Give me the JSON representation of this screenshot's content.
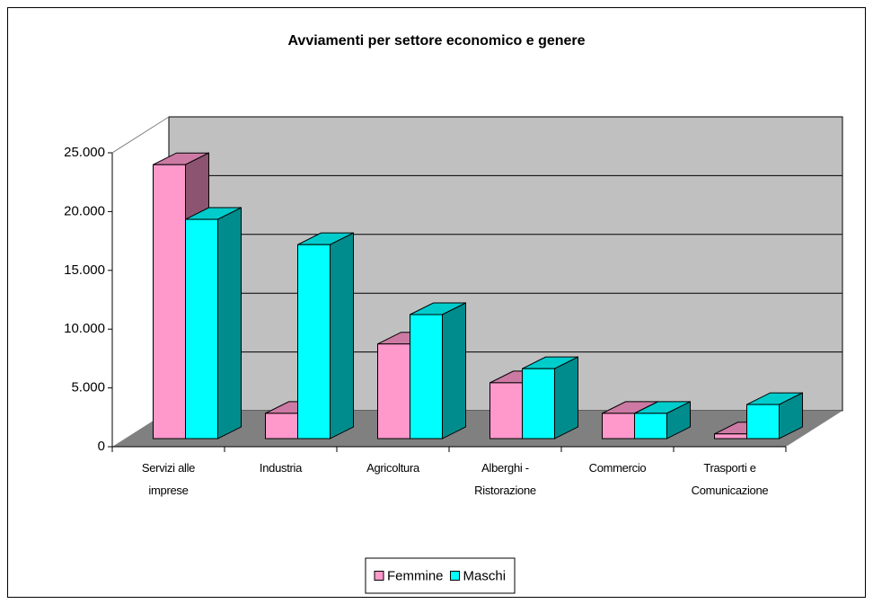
{
  "chart_data": {
    "type": "bar3d",
    "title": "Avviamenti per settore economico e genere",
    "categories": [
      "Servizi alle imprese",
      "Industria",
      "Agricoltura",
      "Alberghi - Ristorazione",
      "Commercio",
      "Trasporti e Comunicazione"
    ],
    "series": [
      {
        "name": "Femmine",
        "color": "#ff99cc",
        "values": [
          23300,
          2150,
          8050,
          4750,
          2150,
          400
        ]
      },
      {
        "name": "Maschi",
        "color": "#00ffff",
        "values": [
          18650,
          16500,
          10550,
          5950,
          2150,
          2900
        ]
      }
    ],
    "ylim": [
      0,
      25000
    ],
    "yticks": [
      0,
      {
        "value": 5000,
        "label": "5.000"
      },
      {
        "value": 10000,
        "label": "10.000"
      },
      {
        "value": 15000,
        "label": "15.000"
      },
      {
        "value": 20000,
        "label": "20.000"
      },
      {
        "value": 25000,
        "label": "25.000"
      }
    ],
    "grid": true,
    "legend": "bottom"
  }
}
